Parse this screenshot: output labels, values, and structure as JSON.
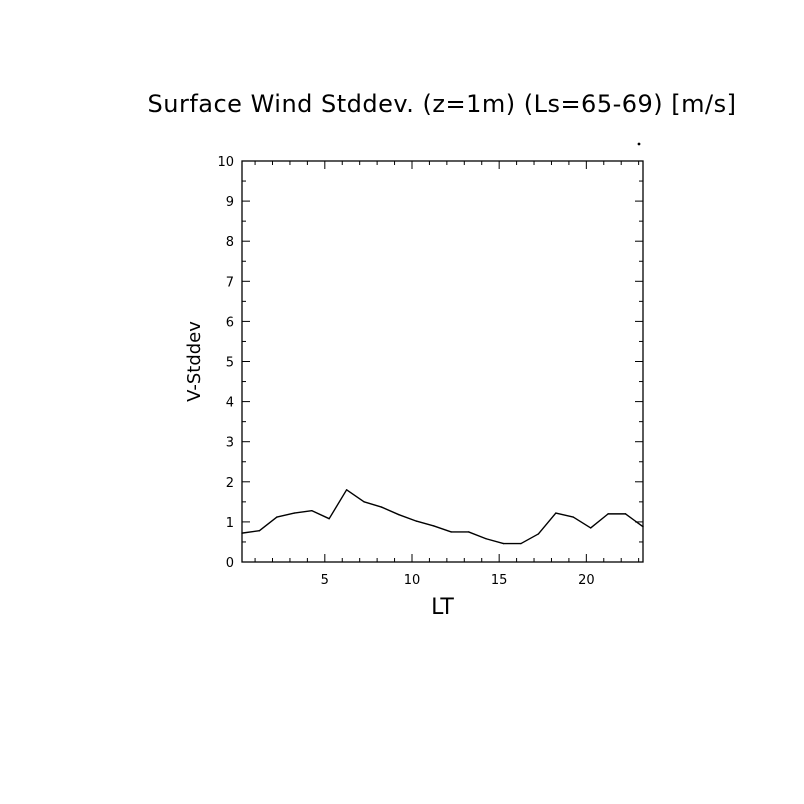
{
  "chart_data": {
    "type": "line",
    "title": "Surface Wind Stddev. (z=1m) (Ls=65-69) [m/s]",
    "xlabel": "LT",
    "ylabel": "V-Stddev",
    "xlim": [
      0.25,
      23.25
    ],
    "ylim": [
      0,
      10
    ],
    "x_ticks": [
      5,
      10,
      15,
      20
    ],
    "y_ticks": [
      0,
      1,
      2,
      3,
      4,
      5,
      6,
      7,
      8,
      9,
      10
    ],
    "grid": false,
    "series": [
      {
        "x": [
          0.25,
          1.25,
          2.25,
          3.25,
          4.25,
          5.25,
          6.25,
          7.25,
          8.25,
          9.25,
          10.25,
          11.25,
          12.25,
          13.25,
          14.25,
          15.25,
          16.25,
          17.25,
          18.25,
          19.25,
          20.25,
          21.25,
          22.25,
          23.25
        ],
        "y": [
          0.72,
          0.78,
          1.12,
          1.22,
          1.28,
          1.08,
          1.8,
          1.5,
          1.37,
          1.18,
          1.02,
          0.9,
          0.75,
          0.75,
          0.58,
          0.46,
          0.46,
          0.7,
          1.22,
          1.12,
          0.85,
          1.2,
          1.2,
          0.88
        ]
      }
    ]
  }
}
